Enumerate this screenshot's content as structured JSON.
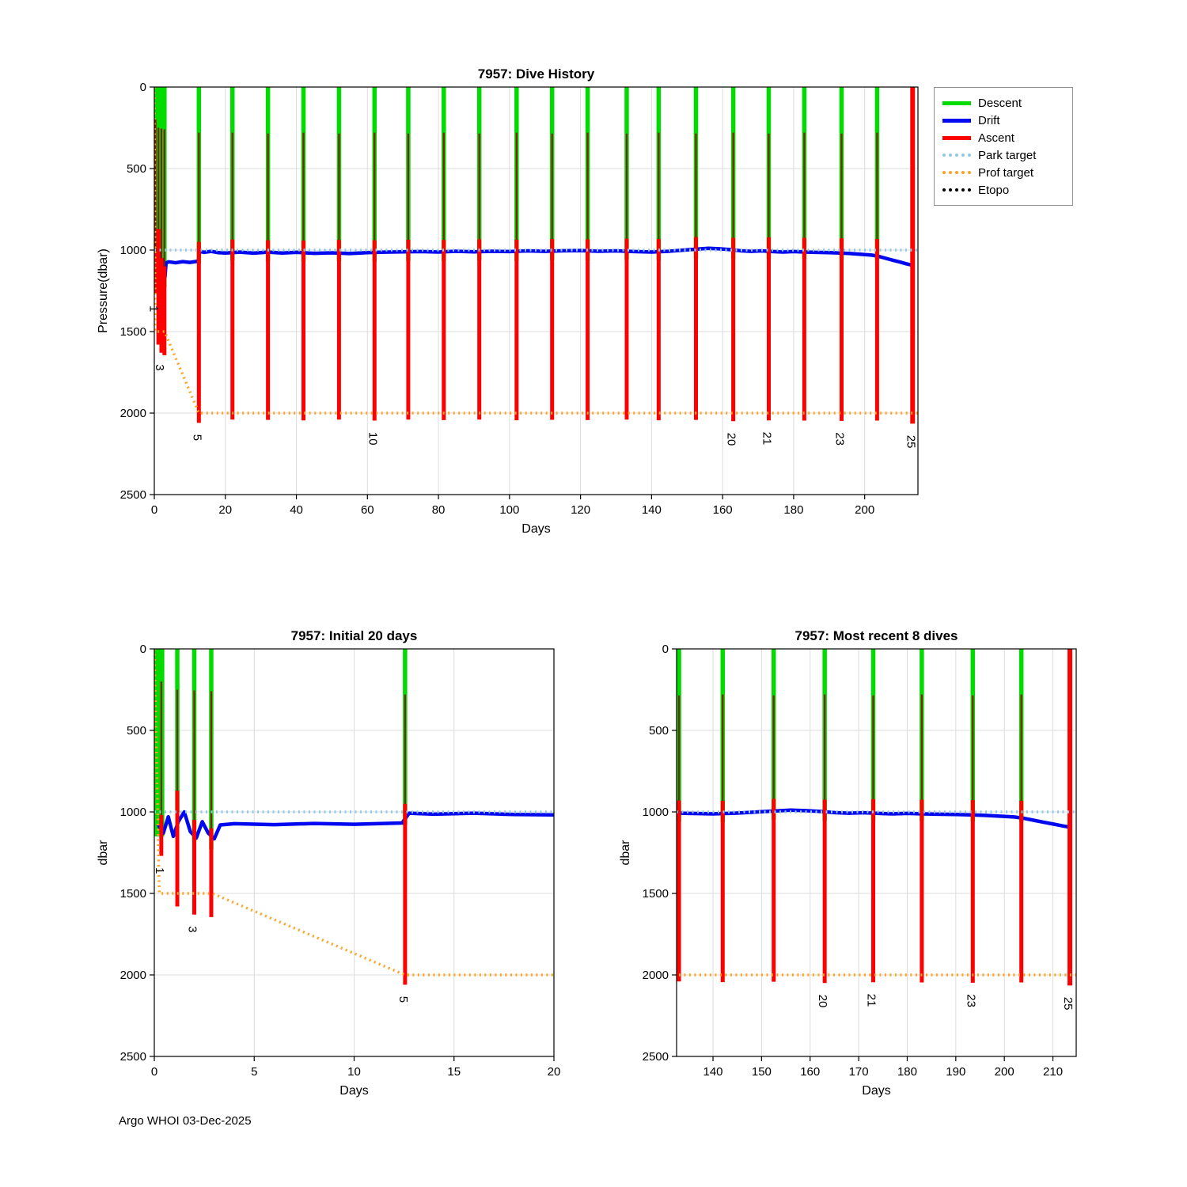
{
  "page": {
    "footer": "Argo WHOI 03-Dec-2025"
  },
  "colors": {
    "descent": "#00dc00",
    "drift": "#0008f0",
    "ascent": "#ff0000",
    "ascent_core": "#8a1a00",
    "park": "#8fc9e6",
    "prof": "#ffa21f",
    "etopo": "#000000",
    "grid": "#dcdcdc",
    "axis": "#000000"
  },
  "legend": {
    "entries": [
      {
        "key": "descent",
        "label": "Descent",
        "style": "solid"
      },
      {
        "key": "drift",
        "label": "Drift",
        "style": "solid"
      },
      {
        "key": "ascent",
        "label": "Ascent",
        "style": "solid"
      },
      {
        "key": "park",
        "label": "Park target",
        "style": "dotted"
      },
      {
        "key": "prof",
        "label": "Prof target",
        "style": "dotted"
      },
      {
        "key": "etopo",
        "label": "Etopo",
        "style": "dotted"
      }
    ]
  },
  "chart_data": {
    "shared": {
      "park_target_dbar": 1000,
      "prof_target_path": [
        [
          0,
          0
        ],
        [
          0.25,
          1500
        ],
        [
          2.9,
          1500
        ],
        [
          12.55,
          2000
        ],
        [
          215,
          2000
        ]
      ],
      "surface_block": {
        "start": 0,
        "end": 0.5,
        "depth": 1150
      },
      "drift_path": [
        [
          0.2,
          1080
        ],
        [
          0.45,
          1130
        ],
        [
          0.7,
          1030
        ],
        [
          0.95,
          1150
        ],
        [
          1.2,
          1060
        ],
        [
          1.5,
          1000
        ],
        [
          1.8,
          1120
        ],
        [
          2.1,
          1160
        ],
        [
          2.4,
          1060
        ],
        [
          2.7,
          1130
        ],
        [
          3.0,
          1165
        ],
        [
          3.3,
          1080
        ],
        [
          4,
          1072
        ],
        [
          6,
          1078
        ],
        [
          8,
          1071
        ],
        [
          10,
          1076
        ],
        [
          12.4,
          1068
        ],
        [
          12.75,
          1008
        ],
        [
          14,
          1014
        ],
        [
          16,
          1008
        ],
        [
          18,
          1016
        ],
        [
          20,
          1018
        ],
        [
          24,
          1013
        ],
        [
          28,
          1019
        ],
        [
          32,
          1013
        ],
        [
          36,
          1018
        ],
        [
          40,
          1014
        ],
        [
          45,
          1020
        ],
        [
          50,
          1017
        ],
        [
          55,
          1021
        ],
        [
          60,
          1016
        ],
        [
          65,
          1013
        ],
        [
          70,
          1011
        ],
        [
          75,
          1009
        ],
        [
          80,
          1012
        ],
        [
          85,
          1007
        ],
        [
          90,
          1011
        ],
        [
          95,
          1007
        ],
        [
          100,
          1009
        ],
        [
          105,
          1005
        ],
        [
          110,
          1008
        ],
        [
          115,
          1004
        ],
        [
          120,
          1003
        ],
        [
          125,
          1007
        ],
        [
          130,
          1005
        ],
        [
          135,
          1009
        ],
        [
          140,
          1012
        ],
        [
          145,
          1007
        ],
        [
          150,
          999
        ],
        [
          153,
          994
        ],
        [
          156,
          989
        ],
        [
          159,
          992
        ],
        [
          162,
          997
        ],
        [
          165,
          1004
        ],
        [
          168,
          1008
        ],
        [
          171,
          1005
        ],
        [
          174,
          1009
        ],
        [
          177,
          1012
        ],
        [
          180,
          1009
        ],
        [
          183,
          1012
        ],
        [
          186,
          1014
        ],
        [
          190,
          1016
        ],
        [
          193,
          1018
        ],
        [
          196,
          1021
        ],
        [
          199,
          1026
        ],
        [
          202,
          1031
        ],
        [
          204,
          1039
        ],
        [
          206,
          1051
        ],
        [
          208,
          1063
        ],
        [
          210,
          1074
        ],
        [
          212,
          1086
        ],
        [
          213.6,
          1094
        ]
      ],
      "dives": [
        {
          "n": 1,
          "day": 0.35,
          "descent": 1150,
          "ascent": 1270,
          "ascent_top": 200
        },
        {
          "n": 2,
          "day": 1.15,
          "descent": 1000,
          "ascent": 1580,
          "ascent_top": 250
        },
        {
          "n": 3,
          "day": 2.0,
          "descent": 1180,
          "ascent": 1630,
          "ascent_top": 255
        },
        {
          "n": 4,
          "day": 2.85,
          "descent": 1230,
          "ascent": 1645,
          "ascent_top": 260
        },
        {
          "n": 5,
          "day": 12.55,
          "descent": 1080,
          "ascent": 2060,
          "ascent_top": 280
        },
        {
          "n": 6,
          "day": 22,
          "descent": 1065,
          "ascent": 2040,
          "ascent_top": 280
        },
        {
          "n": 7,
          "day": 32,
          "descent": 1070,
          "ascent": 2042,
          "ascent_top": 285
        },
        {
          "n": 8,
          "day": 42,
          "descent": 1072,
          "ascent": 2045,
          "ascent_top": 280
        },
        {
          "n": 9,
          "day": 52,
          "descent": 1068,
          "ascent": 2040,
          "ascent_top": 285
        },
        {
          "n": 10,
          "day": 62,
          "descent": 1070,
          "ascent": 2046,
          "ascent_top": 280
        },
        {
          "n": 11,
          "day": 71.5,
          "descent": 1066,
          "ascent": 2040,
          "ascent_top": 285
        },
        {
          "n": 12,
          "day": 81.5,
          "descent": 1068,
          "ascent": 2043,
          "ascent_top": 280
        },
        {
          "n": 13,
          "day": 91.5,
          "descent": 1064,
          "ascent": 2040,
          "ascent_top": 285
        },
        {
          "n": 14,
          "day": 102,
          "descent": 1066,
          "ascent": 2044,
          "ascent_top": 280
        },
        {
          "n": 15,
          "day": 112,
          "descent": 1062,
          "ascent": 2041,
          "ascent_top": 285
        },
        {
          "n": 16,
          "day": 122,
          "descent": 1064,
          "ascent": 2043,
          "ascent_top": 280
        },
        {
          "n": 17,
          "day": 133,
          "descent": 1060,
          "ascent": 2040,
          "ascent_top": 285
        },
        {
          "n": 18,
          "day": 142,
          "descent": 1062,
          "ascent": 2044,
          "ascent_top": 280
        },
        {
          "n": 19,
          "day": 152.5,
          "descent": 1050,
          "ascent": 2042,
          "ascent_top": 285
        },
        {
          "n": 20,
          "day": 163,
          "descent": 1055,
          "ascent": 2050,
          "ascent_top": 280
        },
        {
          "n": 21,
          "day": 173,
          "descent": 1052,
          "ascent": 2045,
          "ascent_top": 285
        },
        {
          "n": 22,
          "day": 183,
          "descent": 1055,
          "ascent": 2046,
          "ascent_top": 280
        },
        {
          "n": 23,
          "day": 193.5,
          "descent": 1058,
          "ascent": 2048,
          "ascent_top": 285
        },
        {
          "n": 24,
          "day": 203.5,
          "descent": 1062,
          "ascent": 2046,
          "ascent_top": 280
        },
        {
          "n": 25,
          "day": 213.5,
          "descent": 0,
          "ascent": 2065,
          "ascent_top": 0,
          "full_red": true
        }
      ]
    },
    "charts": [
      {
        "type": "line",
        "title": "7957: Dive History",
        "xlabel": "Days",
        "ylabel": "Pressure(dbar)",
        "xlim": [
          0,
          215
        ],
        "ylim": [
          0,
          2500
        ],
        "y_inverted": true,
        "grid": true,
        "xticks": [
          0,
          20,
          40,
          60,
          80,
          100,
          120,
          140,
          160,
          180,
          200
        ],
        "yticks": [
          0,
          500,
          1000,
          1500,
          2000,
          2500
        ],
        "labeled_dives": [
          1,
          3,
          5,
          10,
          20,
          21,
          23,
          25
        ],
        "legend_position": "outside-top-right"
      },
      {
        "type": "line",
        "title": "7957: Initial 20 days",
        "xlabel": "Days",
        "ylabel": "dbar",
        "xlim": [
          0,
          20
        ],
        "ylim": [
          0,
          2500
        ],
        "y_inverted": true,
        "grid": true,
        "xticks": [
          0,
          5,
          10,
          15,
          20
        ],
        "yticks": [
          0,
          500,
          1000,
          1500,
          2000,
          2500
        ],
        "labeled_dives": [
          1,
          3,
          5
        ]
      },
      {
        "type": "line",
        "title": "7957: Most recent 8 dives",
        "xlabel": "Days",
        "ylabel": "dbar",
        "xlim": [
          132.5,
          214.8
        ],
        "ylim": [
          0,
          2500
        ],
        "y_inverted": true,
        "grid": true,
        "xticks": [
          140,
          150,
          160,
          170,
          180,
          190,
          200,
          210
        ],
        "yticks": [
          0,
          500,
          1000,
          1500,
          2000,
          2500
        ],
        "labeled_dives": [
          20,
          21,
          23,
          25
        ]
      }
    ]
  }
}
